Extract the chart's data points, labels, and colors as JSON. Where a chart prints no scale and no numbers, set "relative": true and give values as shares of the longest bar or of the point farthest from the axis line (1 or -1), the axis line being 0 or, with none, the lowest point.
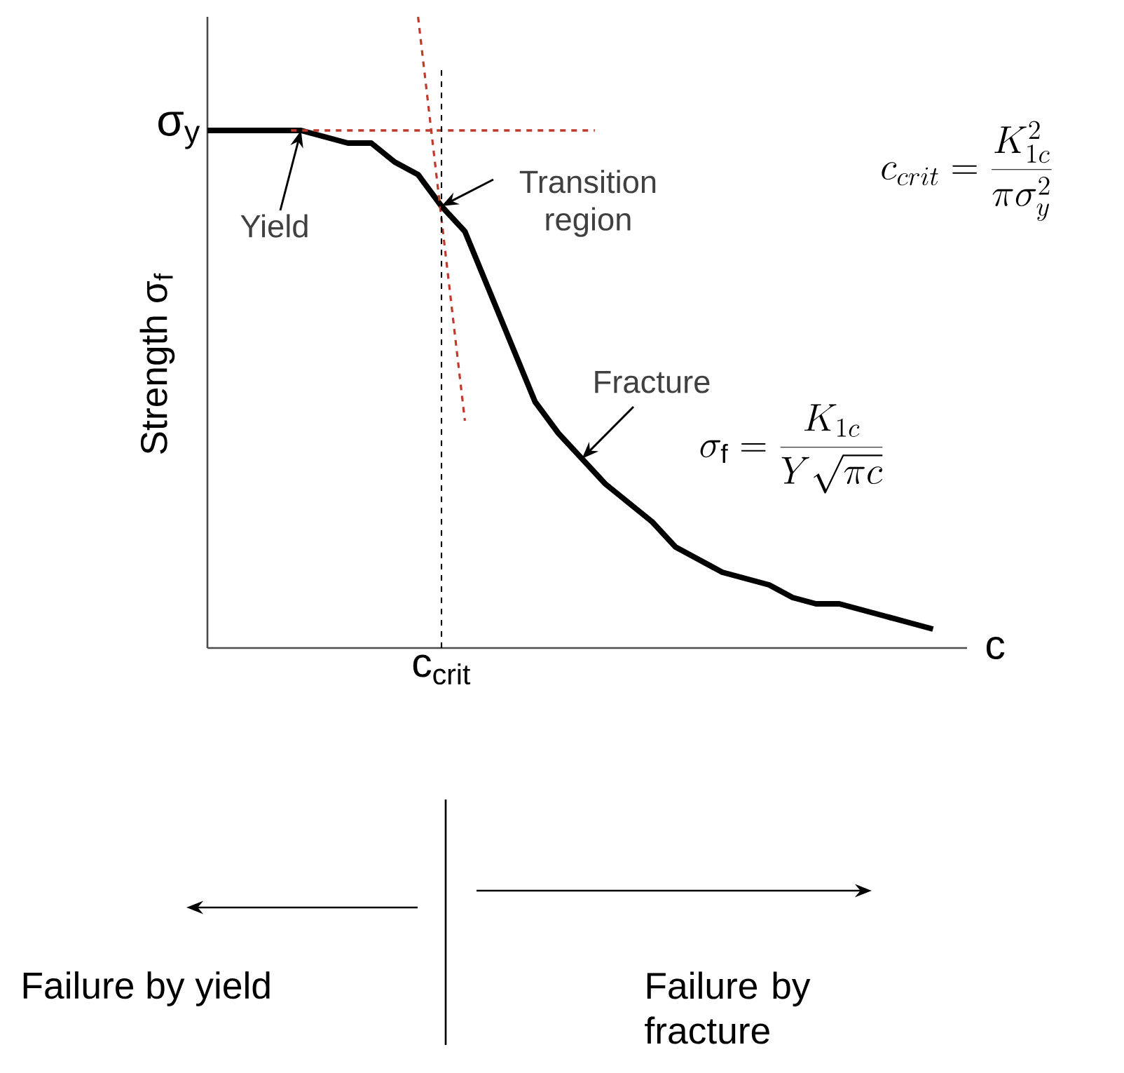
{
  "chart_data": {
    "type": "line",
    "relative": true,
    "xlabel": "c",
    "ylabel": "Strength σ$_{f}$",
    "categories": [
      null,
      null,
      null,
      null,
      null,
      null,
      null,
      null,
      null,
      null,
      null,
      null,
      null,
      null,
      null,
      null,
      null,
      null,
      null,
      null,
      null,
      null,
      null,
      null,
      null,
      null,
      null,
      null,
      null,
      null,
      null,
      null
    ],
    "series": [
      {
        "color": "#000000",
        "line_style": "solid",
        "values": [
          0.82,
          0.82,
          0.82,
          0.82,
          0.82,
          0.81,
          0.8,
          0.8,
          0.77,
          0.75,
          0.7,
          0.66,
          0.57,
          0.48,
          0.39,
          0.34,
          0.3,
          0.26,
          0.23,
          0.2,
          0.16,
          0.14,
          0.12,
          0.11,
          0.1,
          0.08,
          0.07,
          0.07,
          0.06,
          0.05,
          0.04,
          0.03
        ]
      },
      {
        "type": "line",
        "color": "#c0392b",
        "line_style": "dashed",
        "values": [
          null,
          null,
          null,
          null,
          null,
          null,
          null,
          null,
          null,
          1,
          null,
          0.36,
          null,
          null,
          null,
          null,
          null,
          null,
          null,
          null,
          null,
          null,
          null,
          null,
          null,
          null,
          null,
          null,
          null,
          null,
          null,
          null
        ]
      }
    ],
    "annotations": [
      "Yield",
      "Transition region",
      "Fracture",
      "c_{crit} = \\frac{K_{1c}^{2}}{\\pi\\sigma_{y}^{2}}",
      "\\sigma_{\\mathrm{f}} = \\frac{K_{1c}}{Y\\sqrt{\\pi c}}",
      "Failure by yield",
      "Failure by fracture",
      "σ$_{y}$",
      "c$_{crit}$"
    ]
  }
}
